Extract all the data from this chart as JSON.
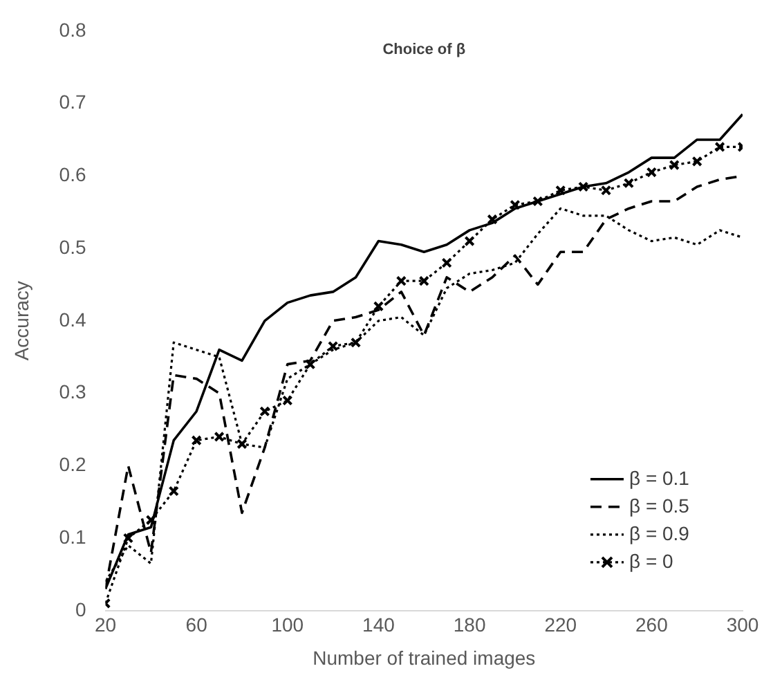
{
  "chart_data": {
    "type": "line",
    "title": "Choice of β",
    "xlabel": "Number of trained images",
    "ylabel": "Accuracy",
    "x": [
      20,
      30,
      40,
      50,
      60,
      70,
      80,
      90,
      100,
      110,
      120,
      130,
      140,
      150,
      160,
      170,
      180,
      190,
      200,
      210,
      220,
      230,
      240,
      250,
      260,
      270,
      280,
      290,
      300
    ],
    "xlim": [
      20,
      300
    ],
    "xticks": [
      20,
      60,
      100,
      140,
      180,
      220,
      260,
      300
    ],
    "ylim": [
      0,
      0.8
    ],
    "yticks": [
      0,
      0.1,
      0.2,
      0.3,
      0.4,
      0.5,
      0.6,
      0.7,
      0.8
    ],
    "grid": false,
    "legend": "bottom right",
    "series": [
      {
        "name": "β = 0.1",
        "color": "#000000",
        "line_style": "solid",
        "marker": "none",
        "values": [
          0.03,
          0.105,
          0.115,
          0.235,
          0.275,
          0.36,
          0.345,
          0.4,
          0.425,
          0.435,
          0.44,
          0.46,
          0.51,
          0.505,
          0.495,
          0.505,
          0.525,
          0.535,
          0.555,
          0.565,
          0.575,
          0.585,
          0.59,
          0.605,
          0.625,
          0.625,
          0.65,
          0.65,
          0.685
        ]
      },
      {
        "name": "β = 0.5",
        "color": "#000000",
        "line_style": "dashed",
        "marker": "none",
        "values": [
          0.03,
          0.2,
          0.08,
          0.325,
          0.32,
          0.3,
          0.135,
          0.225,
          0.34,
          0.345,
          0.4,
          0.405,
          0.415,
          0.44,
          0.38,
          0.46,
          0.44,
          0.46,
          0.49,
          0.45,
          0.495,
          0.495,
          0.54,
          0.555,
          0.565,
          0.565,
          0.585,
          0.595,
          0.6
        ]
      },
      {
        "name": "β = 0.9",
        "color": "#000000",
        "line_style": "dotted",
        "marker": "none",
        "values": [
          0.04,
          0.09,
          0.065,
          0.37,
          0.36,
          0.35,
          0.23,
          0.225,
          0.32,
          0.34,
          0.36,
          0.37,
          0.4,
          0.405,
          0.38,
          0.445,
          0.465,
          0.47,
          0.48,
          0.52,
          0.555,
          0.545,
          0.545,
          0.525,
          0.51,
          0.515,
          0.505,
          0.525,
          0.515
        ]
      },
      {
        "name": "β = 0",
        "color": "#000000",
        "line_style": "dotted",
        "marker": "cross",
        "values": [
          0.01,
          0.1,
          0.125,
          0.165,
          0.235,
          0.24,
          0.23,
          0.275,
          0.29,
          0.34,
          0.365,
          0.37,
          0.42,
          0.455,
          0.455,
          0.48,
          0.51,
          0.54,
          0.56,
          0.565,
          0.58,
          0.585,
          0.58,
          0.59,
          0.605,
          0.615,
          0.62,
          0.64,
          0.64
        ]
      }
    ]
  }
}
